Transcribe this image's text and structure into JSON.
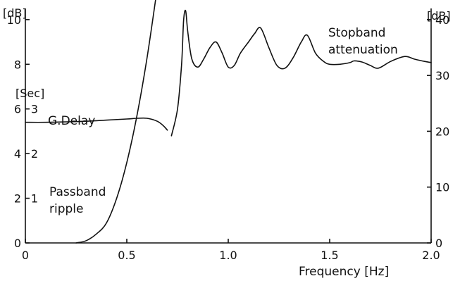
{
  "chart_data": {
    "type": "line",
    "xlabel": "Frequency [Hz]",
    "x_ticks": [
      "0",
      "0.5",
      "1.0",
      "1.5",
      "2.0"
    ],
    "xlim": [
      0,
      2.0
    ],
    "left_axis": {
      "unit": "[dB]",
      "ylim": [
        0,
        10.5
      ],
      "ticks": [
        "0",
        "2",
        "4",
        "6",
        "8",
        "10"
      ]
    },
    "delay_axis": {
      "unit": "[Sec]",
      "ticks": [
        "1",
        "2",
        "3"
      ],
      "dB_equivalent": [
        2,
        4,
        6
      ]
    },
    "right_axis": {
      "unit": "[dB]",
      "ylim": [
        0,
        42
      ],
      "ticks": [
        "0",
        "10",
        "20",
        "30",
        "40"
      ]
    },
    "annotations": {
      "group_delay": "G.Delay",
      "passband_line1": "Passband",
      "passband_line2": "ripple",
      "stopband_line1": "Stopband",
      "stopband_line2": "attenuation"
    },
    "series": [
      {
        "axis": "left",
        "x": [
          0.25,
          0.3,
          0.35,
          0.4,
          0.45,
          0.5,
          0.55,
          0.6,
          0.65
        ],
        "y": [
          0.0,
          0.1,
          0.4,
          0.9,
          2.0,
          3.6,
          5.7,
          8.3,
          11.4
        ]
      },
      {
        "axis": "left",
        "x": [
          0.0,
          0.1,
          0.2,
          0.3,
          0.4,
          0.5,
          0.55,
          0.6,
          0.65,
          0.68,
          0.7
        ],
        "y": [
          5.4,
          5.4,
          5.42,
          5.45,
          5.5,
          5.55,
          5.58,
          5.58,
          5.45,
          5.25,
          5.05
        ]
      },
      {
        "axis": "right",
        "x": [
          0.72,
          0.75,
          0.77,
          0.78,
          0.79,
          0.8,
          0.82,
          0.85,
          0.88,
          0.91,
          0.94,
          0.97,
          1.0,
          1.03,
          1.06,
          1.1,
          1.13,
          1.16,
          1.2,
          1.24,
          1.28,
          1.32,
          1.36,
          1.39,
          1.43,
          1.47,
          1.5,
          1.55,
          1.6,
          1.62,
          1.66,
          1.7,
          1.74,
          1.8,
          1.87,
          1.92,
          1.97,
          2.0
        ],
        "y": [
          19.2,
          24.0,
          32.0,
          39.8,
          41.6,
          38.0,
          33.0,
          31.5,
          33.0,
          35.0,
          36.0,
          34.0,
          31.5,
          31.8,
          34.0,
          36.0,
          37.5,
          38.5,
          35.0,
          31.8,
          31.3,
          33.2,
          36.0,
          37.2,
          34.0,
          32.5,
          32.0,
          32.0,
          32.3,
          32.6,
          32.4,
          31.8,
          31.3,
          32.5,
          33.4,
          32.9,
          32.5,
          32.3
        ]
      }
    ]
  }
}
